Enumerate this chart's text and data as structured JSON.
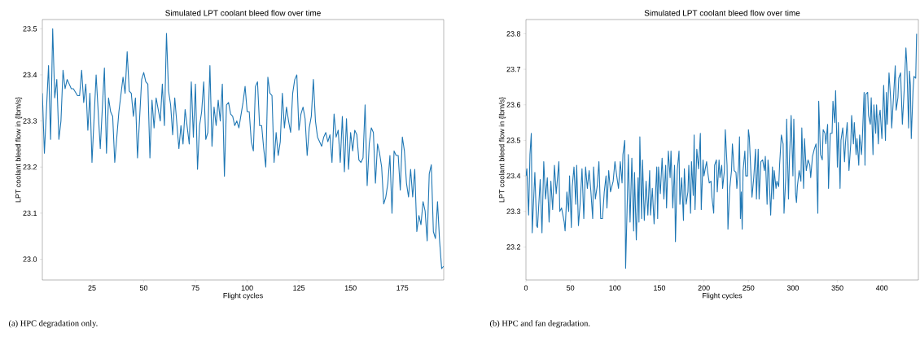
{
  "chart_data": [
    {
      "type": "line",
      "title": "Simulated LPT coolant bleed flow over time",
      "xlabel": "Flight cycles",
      "ylabel": "LPT coolant bleed flow in {lbm/s}",
      "annotations": [
        "(a) HPC degradation only."
      ],
      "xlim": [
        1,
        195
      ],
      "ylim": [
        22.955,
        23.52
      ],
      "xticks": [
        25,
        50,
        75,
        100,
        125,
        150,
        175
      ],
      "yticks": [
        {
          "value": 23.0,
          "label": "23.0"
        },
        23.1,
        23.2,
        23.3,
        23.4,
        23.5
      ],
      "color": "#1f77b4",
      "x": [
        1,
        2,
        4,
        5,
        6,
        7,
        8,
        9,
        10,
        11,
        12,
        13,
        15,
        16,
        18,
        19,
        20,
        21,
        22,
        23,
        24,
        25,
        27,
        29,
        31,
        32,
        33,
        34,
        35,
        36,
        38,
        40,
        41,
        42,
        43,
        44,
        45,
        46,
        47,
        49,
        50,
        51,
        52,
        53,
        54,
        55,
        56,
        58,
        59,
        60,
        61,
        62,
        63,
        64,
        65,
        67,
        68,
        69,
        70,
        72,
        73,
        74,
        75,
        76,
        77,
        78,
        79,
        80,
        81,
        82,
        83,
        84,
        85,
        86,
        87,
        88,
        89,
        90,
        91,
        92,
        93,
        94,
        95,
        96,
        98,
        99,
        100,
        101,
        102,
        103,
        104,
        105,
        106,
        107,
        108,
        109,
        110,
        111,
        112,
        113,
        114,
        115,
        116,
        117,
        118,
        119,
        120,
        121,
        122,
        123,
        124,
        125,
        126,
        127,
        128,
        129,
        130,
        131,
        132,
        133,
        134,
        135,
        136,
        137,
        138,
        139,
        140,
        141,
        142,
        143,
        144,
        145,
        146,
        147,
        148,
        149,
        150,
        151,
        152,
        153,
        154,
        155,
        156,
        157,
        158,
        159,
        160,
        161,
        162,
        163,
        164,
        165,
        166,
        167,
        168,
        169,
        170,
        171,
        172,
        173,
        174,
        175,
        176,
        177,
        178,
        179,
        180,
        181,
        182,
        183,
        184,
        185,
        186,
        187,
        188,
        189,
        190,
        191,
        192,
        193,
        194,
        195
      ],
      "values": [
        23.36,
        23.23,
        23.42,
        23.26,
        23.5,
        23.35,
        23.39,
        23.26,
        23.3,
        23.41,
        23.37,
        23.39,
        23.37,
        23.37,
        23.355,
        23.355,
        23.41,
        23.34,
        23.38,
        23.28,
        23.36,
        23.21,
        23.4,
        23.24,
        23.415,
        23.23,
        23.35,
        23.32,
        23.31,
        23.21,
        23.32,
        23.395,
        23.36,
        23.45,
        23.365,
        23.36,
        23.31,
        23.35,
        23.22,
        23.39,
        23.405,
        23.385,
        23.38,
        23.22,
        23.345,
        23.285,
        23.35,
        23.3,
        23.38,
        23.29,
        23.49,
        23.365,
        23.335,
        23.27,
        23.35,
        23.24,
        23.29,
        23.25,
        23.325,
        23.25,
        23.385,
        23.265,
        23.38,
        23.195,
        23.29,
        23.32,
        23.385,
        23.26,
        23.275,
        23.42,
        23.245,
        23.33,
        23.29,
        23.345,
        23.3,
        23.38,
        23.18,
        23.335,
        23.34,
        23.315,
        23.31,
        23.29,
        23.3,
        23.285,
        23.34,
        23.375,
        23.32,
        23.32,
        23.255,
        23.235,
        23.375,
        23.385,
        23.29,
        23.29,
        23.24,
        23.2,
        23.395,
        23.36,
        23.355,
        23.21,
        23.275,
        23.225,
        23.255,
        23.36,
        23.285,
        23.33,
        23.3,
        23.275,
        23.36,
        23.39,
        23.4,
        23.28,
        23.315,
        23.33,
        23.305,
        23.225,
        23.285,
        23.31,
        23.39,
        23.3,
        23.265,
        23.255,
        23.245,
        23.265,
        23.275,
        23.255,
        23.27,
        23.21,
        23.315,
        23.265,
        23.28,
        23.21,
        23.31,
        23.19,
        23.305,
        23.195,
        23.275,
        23.235,
        23.28,
        23.27,
        23.215,
        23.21,
        23.22,
        23.335,
        23.16,
        23.25,
        23.285,
        23.275,
        23.165,
        23.25,
        23.23,
        23.2,
        23.12,
        23.135,
        23.165,
        23.225,
        23.1,
        23.235,
        23.225,
        23.225,
        23.15,
        23.265,
        23.235,
        23.165,
        23.135,
        23.195,
        23.135,
        23.195,
        23.06,
        23.095,
        23.075,
        23.125,
        23.105,
        23.04,
        23.185,
        23.205,
        23.06,
        23.045,
        23.125,
        23.04,
        22.98,
        22.985
      ]
    },
    {
      "type": "line",
      "title": "Simulated LPT coolant bleed flow over time",
      "xlabel": "Flight cycles",
      "ylabel": "LPT coolant bleed flow in {lbm/s}",
      "annotations": [
        "(b) HPC and fan degradation."
      ],
      "xlim": [
        0,
        441
      ],
      "ylim": [
        23.107,
        23.84
      ],
      "xticks": [
        0,
        50,
        100,
        150,
        200,
        250,
        300,
        350,
        400
      ],
      "yticks": [
        23.2,
        23.3,
        23.4,
        23.5,
        23.6,
        23.7,
        23.8
      ],
      "color": "#1f77b4",
      "x": [
        0,
        1,
        3,
        4.5,
        6,
        7,
        10,
        12,
        13,
        16,
        18,
        20,
        22,
        24,
        26,
        28,
        30,
        32,
        34,
        37,
        38,
        40,
        43,
        44,
        46,
        48,
        49,
        51,
        52,
        54,
        56,
        57,
        59,
        61,
        63,
        65,
        67,
        69,
        71,
        73,
        75,
        76,
        78,
        80,
        82,
        84,
        86,
        88,
        90,
        91,
        93,
        95,
        98,
        100,
        102,
        104,
        106,
        108,
        109,
        111,
        112,
        114,
        115,
        117,
        119,
        121,
        122,
        124,
        126,
        127,
        128,
        130,
        131,
        133,
        135,
        137,
        139,
        140,
        142,
        144,
        147,
        148,
        149,
        151,
        153,
        155,
        157,
        158,
        160,
        162,
        163,
        165,
        167,
        168,
        170,
        172,
        173,
        175,
        177,
        178,
        180,
        182,
        183,
        185,
        186,
        188,
        189,
        190,
        192,
        194,
        196,
        197,
        199,
        200,
        203,
        204,
        206,
        208,
        209,
        211,
        212,
        214,
        215,
        217,
        218,
        220,
        221,
        223,
        224,
        226,
        227,
        229,
        231,
        232,
        234,
        236,
        237,
        239,
        240,
        241,
        242,
        243,
        244,
        246,
        247,
        249,
        250,
        251,
        254,
        256,
        258,
        259,
        261,
        262,
        264,
        266,
        268,
        269,
        271,
        272,
        273,
        275,
        277,
        278,
        279,
        281,
        282,
        284,
        285,
        287,
        289,
        290,
        292,
        293,
        295,
        296,
        298,
        300,
        301,
        303,
        304,
        305,
        307,
        309,
        310,
        312,
        313,
        315,
        317,
        319,
        320,
        322,
        324,
        326,
        328,
        329,
        331,
        333,
        334,
        336,
        337,
        339,
        340,
        342,
        344,
        345,
        347,
        348,
        350,
        351,
        353,
        354,
        356,
        358,
        359,
        361,
        363,
        365,
        366,
        368,
        369,
        371,
        372,
        374,
        375,
        377,
        378,
        380,
        381,
        382,
        384,
        385,
        387,
        388,
        390,
        391,
        393,
        394,
        396,
        397,
        398,
        400,
        402,
        404,
        405,
        406,
        408,
        410,
        411,
        413,
        415,
        416,
        418,
        419,
        421,
        423,
        425,
        427,
        428,
        430,
        431,
        432,
        433,
        435,
        436,
        438,
        439
      ],
      "values": [
        23.4,
        23.42,
        23.29,
        23.46,
        23.52,
        23.24,
        23.41,
        23.26,
        23.255,
        23.39,
        23.24,
        23.44,
        23.335,
        23.395,
        23.27,
        23.385,
        23.305,
        23.43,
        23.35,
        23.44,
        23.3,
        23.31,
        23.27,
        23.245,
        23.355,
        23.3,
        23.4,
        23.255,
        23.37,
        23.425,
        23.32,
        23.43,
        23.26,
        23.325,
        23.42,
        23.28,
        23.425,
        23.365,
        23.415,
        23.355,
        23.28,
        23.425,
        23.335,
        23.37,
        23.44,
        23.28,
        23.28,
        23.355,
        23.4,
        23.31,
        23.415,
        23.355,
        23.385,
        23.44,
        23.4,
        23.365,
        23.44,
        23.38,
        23.46,
        23.5,
        23.14,
        23.34,
        23.46,
        23.27,
        23.45,
        23.245,
        23.41,
        23.22,
        23.395,
        23.27,
        23.51,
        23.28,
        23.445,
        23.275,
        23.385,
        23.29,
        23.415,
        23.29,
        23.365,
        23.265,
        23.425,
        23.28,
        23.425,
        23.35,
        23.45,
        23.335,
        23.43,
        23.31,
        23.47,
        23.395,
        23.47,
        23.31,
        23.43,
        23.215,
        23.415,
        23.47,
        23.32,
        23.395,
        23.275,
        23.42,
        23.32,
        23.355,
        23.43,
        23.295,
        23.44,
        23.345,
        23.515,
        23.305,
        23.475,
        23.42,
        23.52,
        23.305,
        23.445,
        23.4,
        23.44,
        23.415,
        23.38,
        23.385,
        23.34,
        23.295,
        23.43,
        23.445,
        23.355,
        23.445,
        23.395,
        23.43,
        23.365,
        23.415,
        23.53,
        23.43,
        23.25,
        23.365,
        23.415,
        23.49,
        23.415,
        23.41,
        23.365,
        23.43,
        23.51,
        23.28,
        23.355,
        23.25,
        23.415,
        23.47,
        23.4,
        23.4,
        23.53,
        23.51,
        23.34,
        23.395,
        23.475,
        23.335,
        23.475,
        23.335,
        23.44,
        23.445,
        23.415,
        23.455,
        23.32,
        23.445,
        23.415,
        23.29,
        23.425,
        23.335,
        23.415,
        23.365,
        23.385,
        23.37,
        23.43,
        23.515,
        23.49,
        23.295,
        23.395,
        23.56,
        23.335,
        23.44,
        23.57,
        23.4,
        23.56,
        23.35,
        23.325,
        23.37,
        23.415,
        23.385,
        23.535,
        23.365,
        23.505,
        23.415,
        23.445,
        23.43,
        23.395,
        23.455,
        23.475,
        23.49,
        23.295,
        23.61,
        23.46,
        23.445,
        23.53,
        23.52,
        23.49,
        23.545,
        23.365,
        23.52,
        23.52,
        23.61,
        23.55,
        23.64,
        23.425,
        23.55,
        23.365,
        23.5,
        23.535,
        23.44,
        23.49,
        23.55,
        23.415,
        23.49,
        23.57,
        23.49,
        23.55,
        23.46,
        23.505,
        23.43,
        23.515,
        23.46,
        23.505,
        23.635,
        23.43,
        23.63,
        23.635,
        23.57,
        23.545,
        23.62,
        23.46,
        23.6,
        23.52,
        23.6,
        23.49,
        23.57,
        23.585,
        23.505,
        23.655,
        23.5,
        23.635,
        23.545,
        23.69,
        23.61,
        23.535,
        23.62,
        23.71,
        23.585,
        23.62,
        23.675,
        23.69,
        23.545,
        23.64,
        23.76,
        23.715,
        23.535,
        23.695,
        23.655,
        23.505,
        23.64,
        23.68,
        23.675,
        23.8
      ]
    }
  ]
}
